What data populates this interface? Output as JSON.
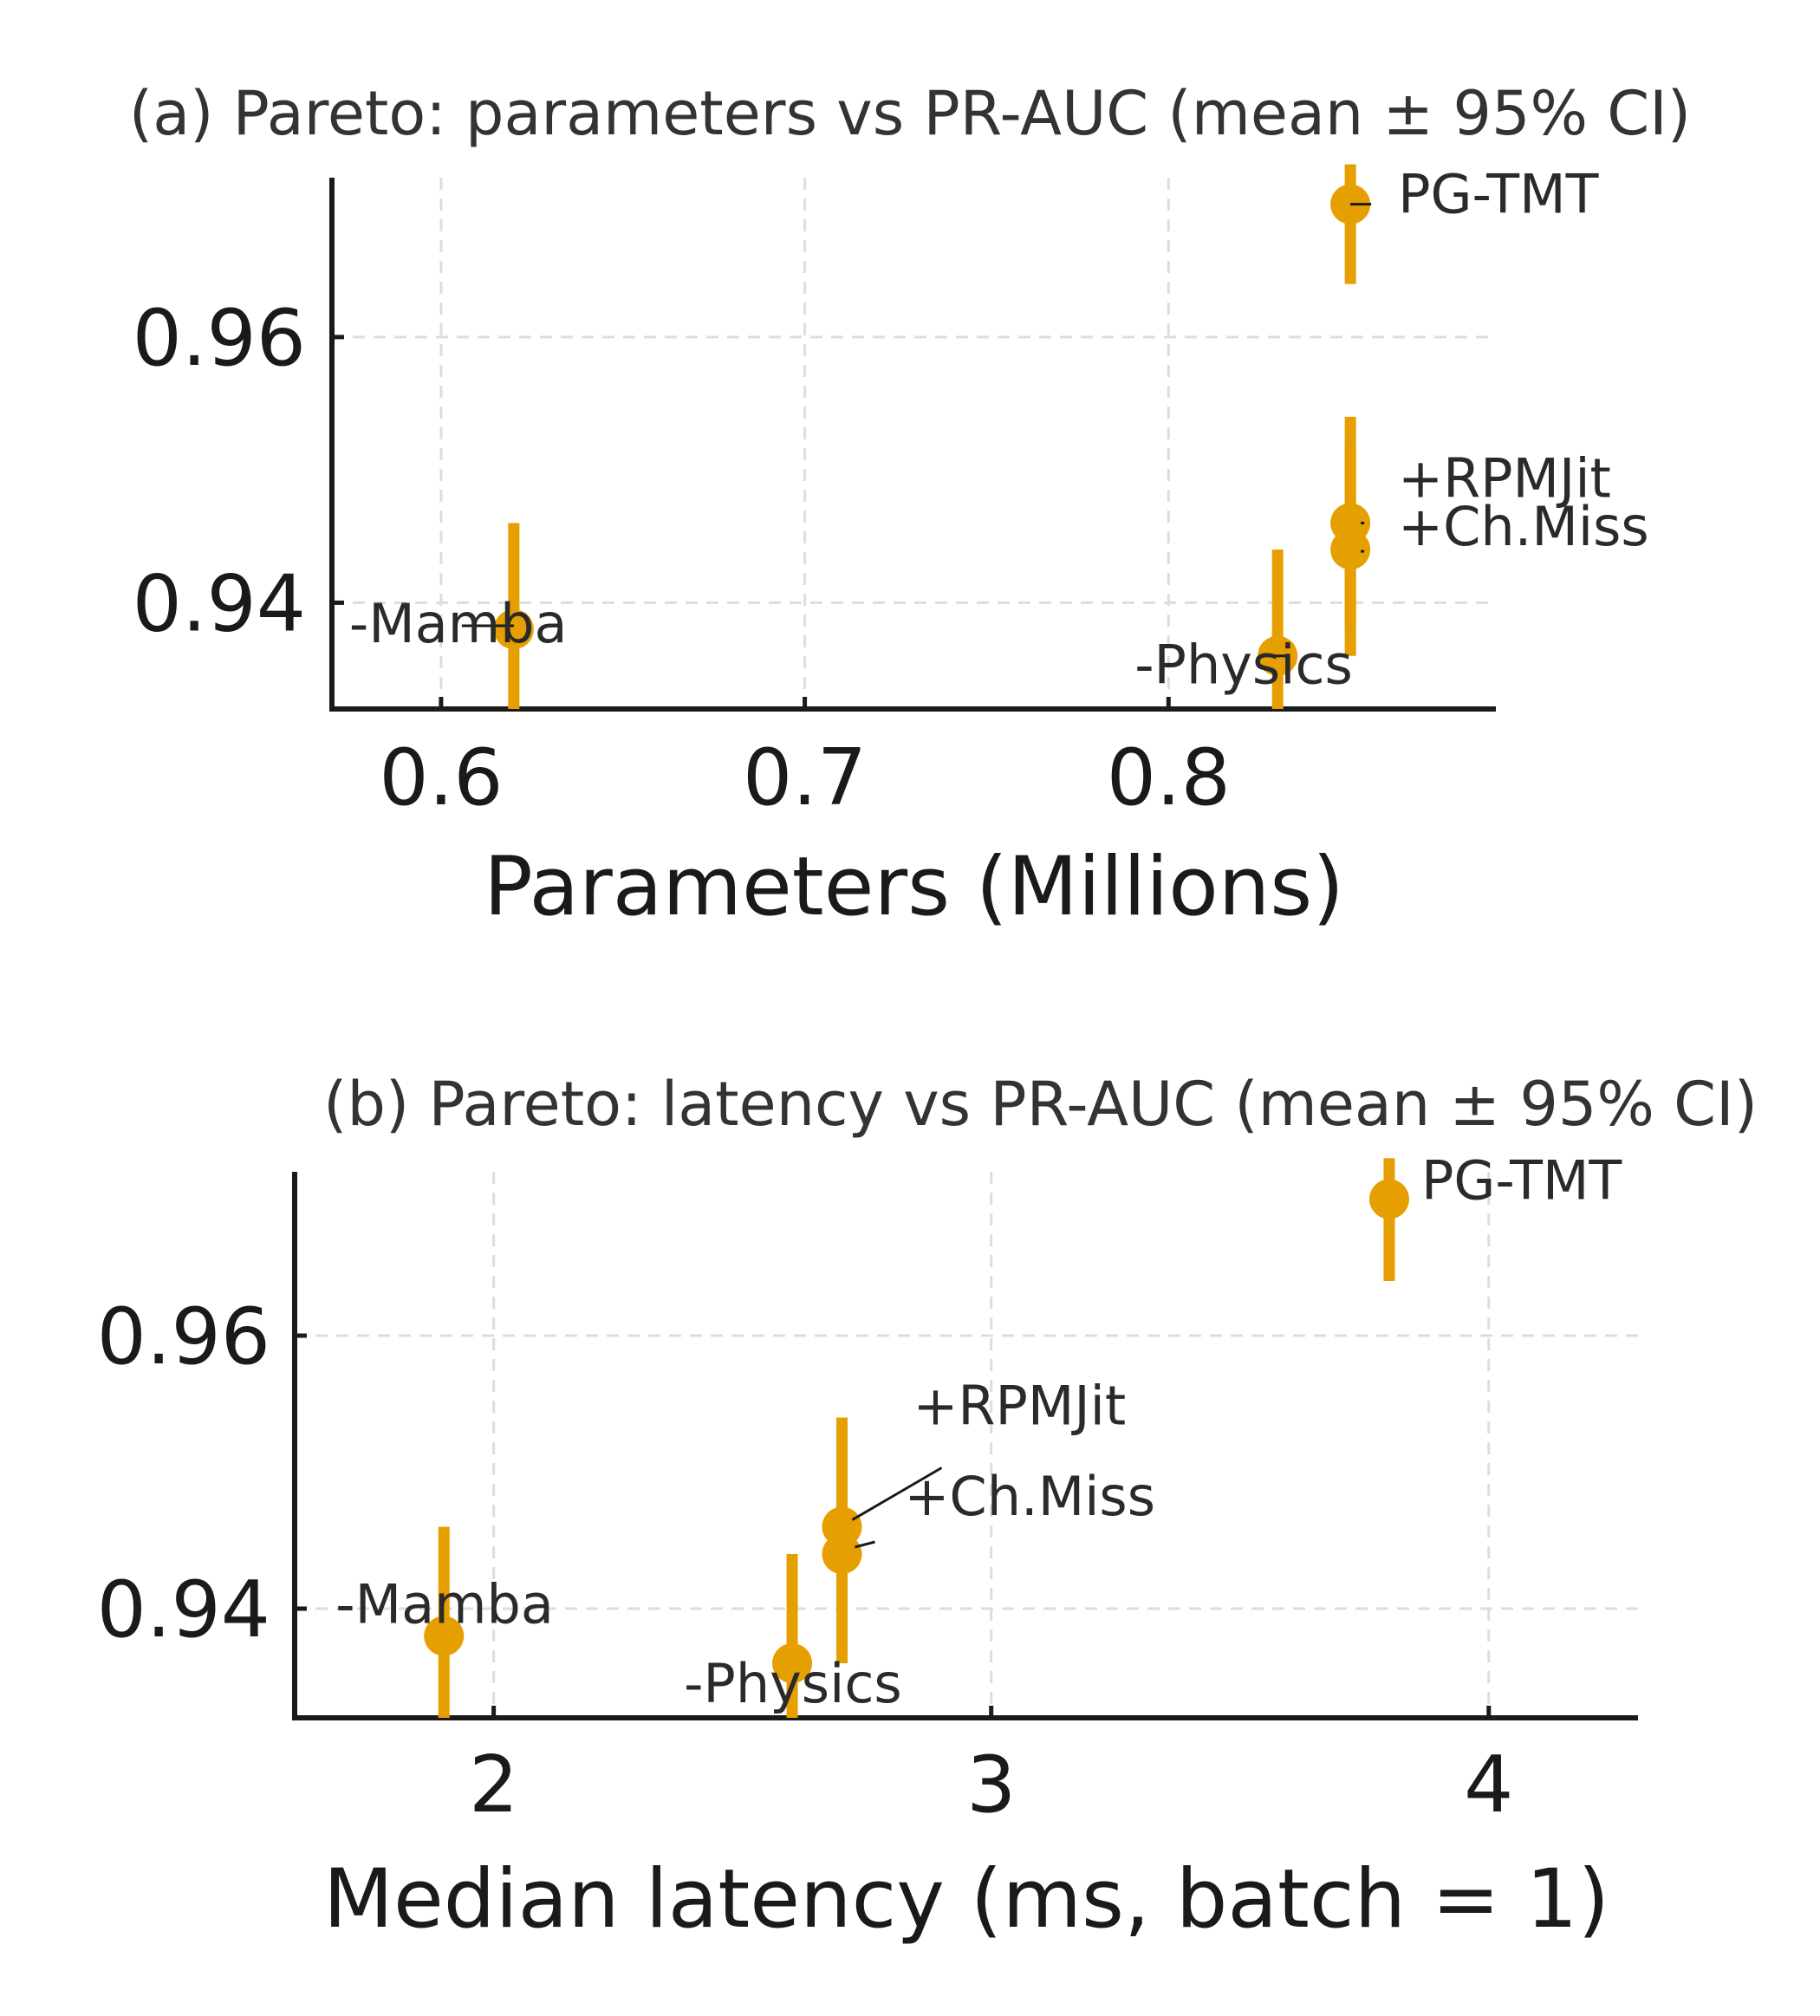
{
  "chart_data": [
    {
      "type": "scatter",
      "title": "(a) Pareto: parameters vs PR-AUC (mean ± 95% CI)",
      "xlabel": "Parameters (Millions)",
      "ylabel": "",
      "xlim": [
        0.57,
        0.89
      ],
      "ylim": [
        0.932,
        0.972
      ],
      "xticks": [
        0.6,
        0.7,
        0.8
      ],
      "xtick_labels": [
        "0.6",
        "0.7",
        "0.8"
      ],
      "yticks": [
        0.94,
        0.96
      ],
      "ytick_labels": [
        "0.94",
        "0.96"
      ],
      "grid": true,
      "color": "#e69f00",
      "points": [
        {
          "label": "PG-TMT",
          "x": 0.85,
          "y": 0.97,
          "ci_low": 0.964,
          "ci_high": 0.973
        },
        {
          "label": "+RPMJit",
          "x": 0.85,
          "y": 0.946,
          "ci_low": 0.938,
          "ci_high": 0.954
        },
        {
          "label": "+Ch.Miss",
          "x": 0.85,
          "y": 0.944,
          "ci_low": 0.936,
          "ci_high": 0.952
        },
        {
          "label": "-Mamba",
          "x": 0.62,
          "y": 0.938,
          "ci_low": 0.93,
          "ci_high": 0.946
        },
        {
          "label": "-Physics",
          "x": 0.83,
          "y": 0.936,
          "ci_low": 0.928,
          "ci_high": 0.944
        }
      ]
    },
    {
      "type": "scatter",
      "title": "(b) Pareto: latency vs PR-AUC (mean ± 95% CI)",
      "xlabel": "Median latency (ms, batch = 1)",
      "ylabel": "",
      "xlim": [
        1.6,
        4.3
      ],
      "ylim": [
        0.932,
        0.972
      ],
      "xticks": [
        2,
        3,
        4
      ],
      "xtick_labels": [
        "2",
        "3",
        "4"
      ],
      "yticks": [
        0.94,
        0.96
      ],
      "ytick_labels": [
        "0.94",
        "0.96"
      ],
      "grid": true,
      "color": "#e69f00",
      "points": [
        {
          "label": "PG-TMT",
          "x": 3.8,
          "y": 0.97,
          "ci_low": 0.964,
          "ci_high": 0.973
        },
        {
          "label": "+RPMJit",
          "x": 2.7,
          "y": 0.946,
          "ci_low": 0.938,
          "ci_high": 0.954
        },
        {
          "label": "+Ch.Miss",
          "x": 2.7,
          "y": 0.944,
          "ci_low": 0.936,
          "ci_high": 0.952
        },
        {
          "label": "-Mamba",
          "x": 1.9,
          "y": 0.938,
          "ci_low": 0.93,
          "ci_high": 0.946
        },
        {
          "label": "-Physics",
          "x": 2.6,
          "y": 0.936,
          "ci_low": 0.928,
          "ci_high": 0.944
        }
      ]
    }
  ]
}
